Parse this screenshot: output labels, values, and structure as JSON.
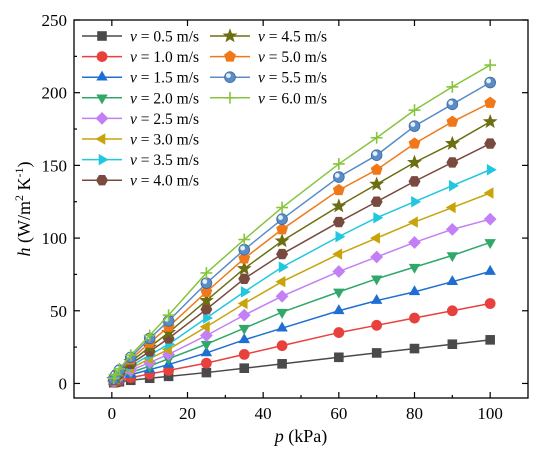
{
  "chart_data": {
    "type": "line",
    "title": "",
    "xlabel": {
      "var": "p",
      "unit": " (kPa)"
    },
    "ylabel": {
      "var": "h",
      "unit_pre": " (W/m",
      "sup1": "2",
      "mid": " K",
      "sup2": "-1",
      "close": ")"
    },
    "xlim": [
      -10,
      110
    ],
    "ylim": [
      -10,
      250
    ],
    "xticks": [
      0,
      20,
      40,
      60,
      80,
      100
    ],
    "yticks": [
      0,
      50,
      100,
      150,
      200,
      250
    ],
    "grid": false,
    "legend_placement": "top-left",
    "x": [
      0.5,
      1,
      2,
      5,
      10,
      15,
      25,
      35,
      45,
      60,
      70,
      80,
      90,
      100
    ],
    "series": [
      {
        "name": "v = 0.5 m/s",
        "label_var": "v",
        "label_rest": " = 0.5 m/s",
        "color": "#4a4a4a",
        "marker": "square",
        "values": [
          0.5,
          0.8,
          1.2,
          2.2,
          3.6,
          4.9,
          7.5,
          10.5,
          13.5,
          18,
          21,
          24,
          27,
          30
        ]
      },
      {
        "name": "v = 1.0 m/s",
        "label_var": "v",
        "label_rest": " = 1.0 m/s",
        "color": "#e8413d",
        "marker": "circle",
        "values": [
          0.8,
          1.3,
          2.2,
          4,
          6.5,
          9,
          14,
          20,
          26,
          35,
          40,
          45,
          50,
          55
        ]
      },
      {
        "name": "v = 1.5 m/s",
        "label_var": "v",
        "label_rest": " = 1.5 m/s",
        "color": "#1f6fd1",
        "marker": "triangle-up",
        "values": [
          1,
          1.8,
          3,
          6,
          9.5,
          13,
          21,
          30,
          38,
          50,
          57,
          63,
          70,
          77
        ]
      },
      {
        "name": "v = 2.0 m/s",
        "label_var": "v",
        "label_rest": " = 2.0 m/s",
        "color": "#2fa869",
        "marker": "triangle-down",
        "values": [
          1.2,
          2.2,
          3.8,
          7.5,
          12,
          17,
          27,
          38,
          49,
          63,
          72,
          80,
          88,
          97
        ]
      },
      {
        "name": "v = 2.5 m/s",
        "label_var": "v",
        "label_rest": " = 2.5 m/s",
        "color": "#c37ff5",
        "marker": "diamond",
        "values": [
          1.5,
          2.6,
          4.5,
          9,
          14.5,
          20,
          33,
          47,
          60,
          77,
          87,
          97,
          106,
          113
        ]
      },
      {
        "name": "v = 3.0 m/s",
        "label_var": "v",
        "label_rest": " = 3.0 m/s",
        "color": "#c9a30a",
        "marker": "triangle-left",
        "values": [
          1.8,
          3,
          5.2,
          10.5,
          17,
          23.5,
          39,
          55,
          70,
          89,
          100,
          111,
          121,
          131
        ]
      },
      {
        "name": "v = 3.5 m/s",
        "label_var": "v",
        "label_rest": " = 3.5 m/s",
        "color": "#21c7de",
        "marker": "triangle-right",
        "values": [
          2,
          3.5,
          6,
          12,
          19.5,
          27,
          45,
          63,
          80,
          101,
          114,
          125,
          136,
          147
        ]
      },
      {
        "name": "v = 4.0 m/s",
        "label_var": "v",
        "label_rest": " = 4.0 m/s",
        "color": "#7a4a3f",
        "marker": "hexagon",
        "values": [
          2.3,
          4,
          6.8,
          13.5,
          22,
          31,
          51,
          72,
          89,
          111,
          125,
          139,
          152,
          165
        ]
      },
      {
        "name": "v = 4.5 m/s",
        "label_var": "v",
        "label_rest": " = 4.5 m/s",
        "color": "#6b6f12",
        "marker": "star",
        "values": [
          2.6,
          4.5,
          7.6,
          15,
          25,
          35,
          57,
          79,
          98,
          122,
          137,
          152,
          165,
          180
        ]
      },
      {
        "name": "v = 5.0 m/s",
        "label_var": "v",
        "label_rest": " = 5.0 m/s",
        "color": "#f07818",
        "marker": "pentagon",
        "values": [
          2.9,
          5,
          8.4,
          16.5,
          28,
          39,
          63,
          86,
          106,
          133,
          147,
          165,
          180,
          193
        ]
      },
      {
        "name": "v = 5.5 m/s",
        "label_var": "v",
        "label_rest": " = 5.5 m/s",
        "color": "#5a8cc8",
        "marker": "sphere",
        "values": [
          3.2,
          5.5,
          9.2,
          18,
          31,
          43,
          69,
          92,
          113,
          142,
          157,
          177,
          192,
          207
        ]
      },
      {
        "name": "v = 6.0 m/s",
        "label_var": "v",
        "label_rest": " = 6.0 m/s",
        "color": "#86c43c",
        "marker": "plus",
        "values": [
          3.5,
          6,
          10,
          19.5,
          33,
          47,
          76,
          99,
          121,
          151,
          169,
          188,
          204,
          219
        ]
      }
    ]
  }
}
